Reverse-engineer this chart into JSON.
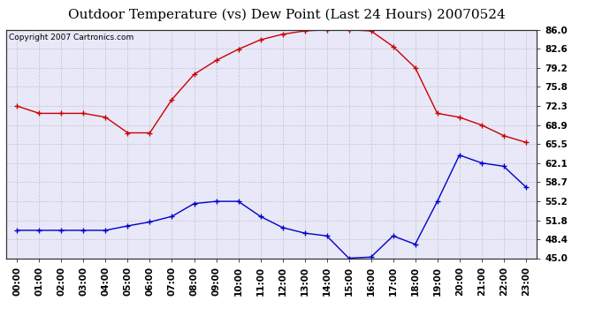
{
  "title": "Outdoor Temperature (vs) Dew Point (Last 24 Hours) 20070524",
  "copyright": "Copyright 2007 Cartronics.com",
  "hours": [
    "00:00",
    "01:00",
    "02:00",
    "03:00",
    "04:00",
    "05:00",
    "06:00",
    "07:00",
    "08:00",
    "09:00",
    "10:00",
    "11:00",
    "12:00",
    "13:00",
    "14:00",
    "15:00",
    "16:00",
    "17:00",
    "18:00",
    "19:00",
    "20:00",
    "21:00",
    "22:00",
    "23:00"
  ],
  "temp": [
    72.3,
    71.0,
    71.0,
    71.0,
    70.3,
    67.5,
    67.5,
    73.5,
    78.0,
    80.5,
    82.5,
    84.2,
    85.2,
    85.8,
    86.0,
    86.0,
    85.8,
    83.0,
    79.2,
    71.0,
    70.3,
    68.9,
    67.0,
    65.8
  ],
  "dew": [
    50.0,
    50.0,
    50.0,
    50.0,
    50.0,
    50.8,
    51.5,
    52.5,
    54.8,
    55.2,
    55.2,
    52.5,
    50.5,
    49.5,
    49.0,
    45.0,
    45.2,
    49.0,
    47.5,
    55.2,
    63.5,
    62.1,
    61.5,
    57.8
  ],
  "temp_color": "#cc0000",
  "dew_color": "#0000cc",
  "bg_color": "#ffffff",
  "plot_bg_color": "#e8e8f8",
  "grid_color": "#bbbbbb",
  "yticks": [
    45.0,
    48.4,
    51.8,
    55.2,
    58.7,
    62.1,
    65.5,
    68.9,
    72.3,
    75.8,
    79.2,
    82.6,
    86.0
  ],
  "ymin": 45.0,
  "ymax": 86.0,
  "title_fontsize": 11,
  "tick_fontsize": 7.5,
  "copyright_fontsize": 6.5
}
